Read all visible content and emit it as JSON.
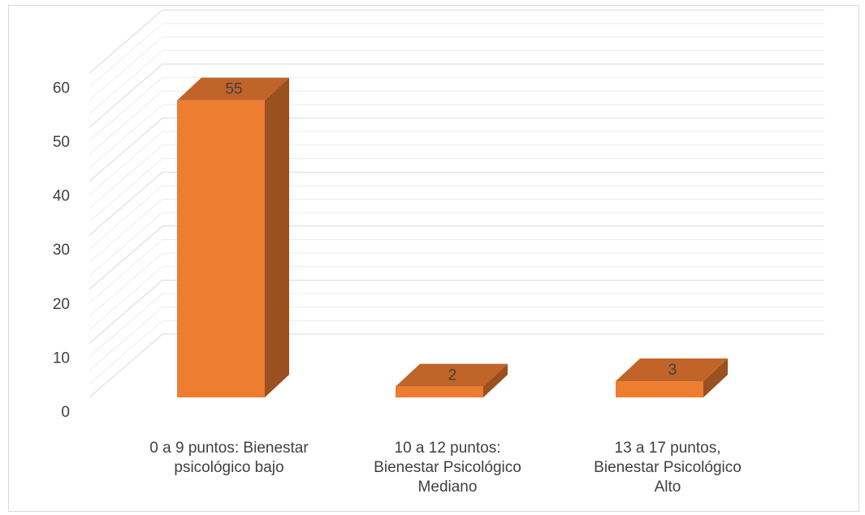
{
  "chart_data": {
    "type": "bar",
    "style": "3d-column",
    "categories": [
      [
        "0 a 9 puntos: Bienestar",
        "psicológico bajo"
      ],
      [
        "10 a 12 puntos:",
        "Bienestar Psicológico",
        "Mediano"
      ],
      [
        "13 a 17 puntos,",
        "Bienestar Psicológico",
        "Alto"
      ]
    ],
    "values": [
      55,
      2,
      3
    ],
    "data_labels": [
      "55",
      "2",
      "3"
    ],
    "ylim": [
      0,
      60
    ],
    "yticks": [
      "0",
      "10",
      "20",
      "30",
      "40",
      "50",
      "60"
    ],
    "title": "",
    "xlabel": "",
    "ylabel": "",
    "grid": true,
    "legend": "none",
    "colors": {
      "front": "#ED7D31",
      "top": "#C0642A",
      "side": "#9A501F"
    }
  }
}
